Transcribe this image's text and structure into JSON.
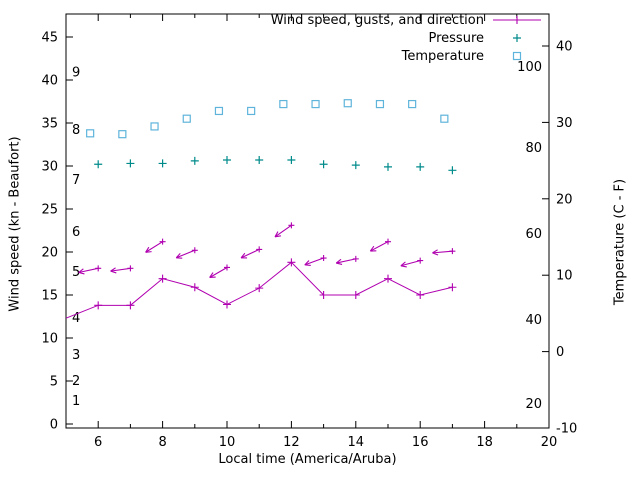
{
  "chart_data": {
    "type": "line",
    "title": "",
    "xlabel": "Local time (America/Aruba)",
    "ylabel": "Wind speed (kn - Beaufort)",
    "y2label": "Temperature (C - F)",
    "x_range_hours": [
      5,
      20
    ],
    "y_left_range_kn": [
      0,
      47.5
    ],
    "y_right_range_c": [
      -10,
      44
    ],
    "grid": false,
    "legend_position": "top-right-inside",
    "x_major_ticks": [
      6,
      8,
      10,
      12,
      14,
      16,
      18,
      20
    ],
    "left_ticks_kn": [
      0,
      5,
      10,
      15,
      20,
      25,
      30,
      35,
      40,
      45
    ],
    "right_ticks_c": [
      -10,
      0,
      10,
      20,
      30,
      40
    ],
    "beaufort_scale_labels": [
      {
        "label": "1",
        "kn": 2.7
      },
      {
        "label": "2",
        "kn": 5.0
      },
      {
        "label": "3",
        "kn": 8.0
      },
      {
        "label": "4",
        "kn": 12.3
      },
      {
        "label": "5",
        "kn": 17.7
      },
      {
        "label": "6",
        "kn": 22.3
      },
      {
        "label": "7",
        "kn": 28.4
      },
      {
        "label": "8",
        "kn": 34.2
      },
      {
        "label": "9",
        "kn": 40.9
      }
    ],
    "inner_right_scale_labels": [
      {
        "label": "20",
        "kn": 2.3
      },
      {
        "label": "40",
        "kn": 12.1
      },
      {
        "label": "60",
        "kn": 22.1
      },
      {
        "label": "80",
        "kn": 32.1
      },
      {
        "label": "100",
        "kn": 41.5
      }
    ],
    "legend": [
      {
        "label": "Wind speed, gusts, and direction",
        "color": "#b000b0",
        "marker": "line-plus"
      },
      {
        "label": "Pressure",
        "color": "#008b8b",
        "marker": "plus"
      },
      {
        "label": "Temperature",
        "color": "#5fb4db",
        "marker": "square"
      }
    ],
    "x_hours": [
      6,
      7,
      8,
      9,
      10,
      11,
      12,
      13,
      14,
      15,
      16,
      17
    ],
    "series": [
      {
        "name": "wind_speed",
        "color": "#b000b0",
        "marker": "plus",
        "line": true,
        "line_start": {
          "hour": 5,
          "kn": 12.3
        },
        "values_kn": [
          13.8,
          13.8,
          16.9,
          15.9,
          13.9,
          15.8,
          18.8,
          15.0,
          15.0,
          16.9,
          15.0,
          15.9
        ]
      },
      {
        "name": "wind_gusts",
        "color": "#b000b0",
        "marker": "arrow",
        "values_kn": [
          18.1,
          18.1,
          21.2,
          20.2,
          18.2,
          20.3,
          23.1,
          19.3,
          19.2,
          21.2,
          19.0,
          20.1
        ],
        "arrow_angles_screen_deg": [
          168,
          172,
          148,
          158,
          150,
          155,
          145,
          160,
          168,
          152,
          165,
          175
        ]
      },
      {
        "name": "pressure",
        "color": "#008b8b",
        "marker": "plus",
        "values_kn": [
          30.2,
          30.3,
          30.3,
          30.6,
          30.7,
          30.7,
          30.7,
          30.2,
          30.1,
          29.9,
          29.9,
          29.5
        ],
        "values_inner_scale": [
          76.5,
          76.7,
          76.7,
          77.3,
          77.5,
          77.5,
          77.5,
          76.5,
          76.3,
          75.9,
          75.9,
          75.1
        ]
      },
      {
        "name": "temperature",
        "color": "#5fb4db",
        "marker": "open-square",
        "x_offset_hours": -0.25,
        "values_kn": [
          33.8,
          33.7,
          34.6,
          35.5,
          36.4,
          36.4,
          37.2,
          37.2,
          37.3,
          37.2,
          37.2,
          35.5
        ],
        "values_c": [
          28.6,
          28.5,
          29.5,
          30.5,
          31.6,
          31.5,
          32.4,
          32.4,
          32.5,
          32.4,
          32.4,
          30.5
        ]
      }
    ]
  }
}
